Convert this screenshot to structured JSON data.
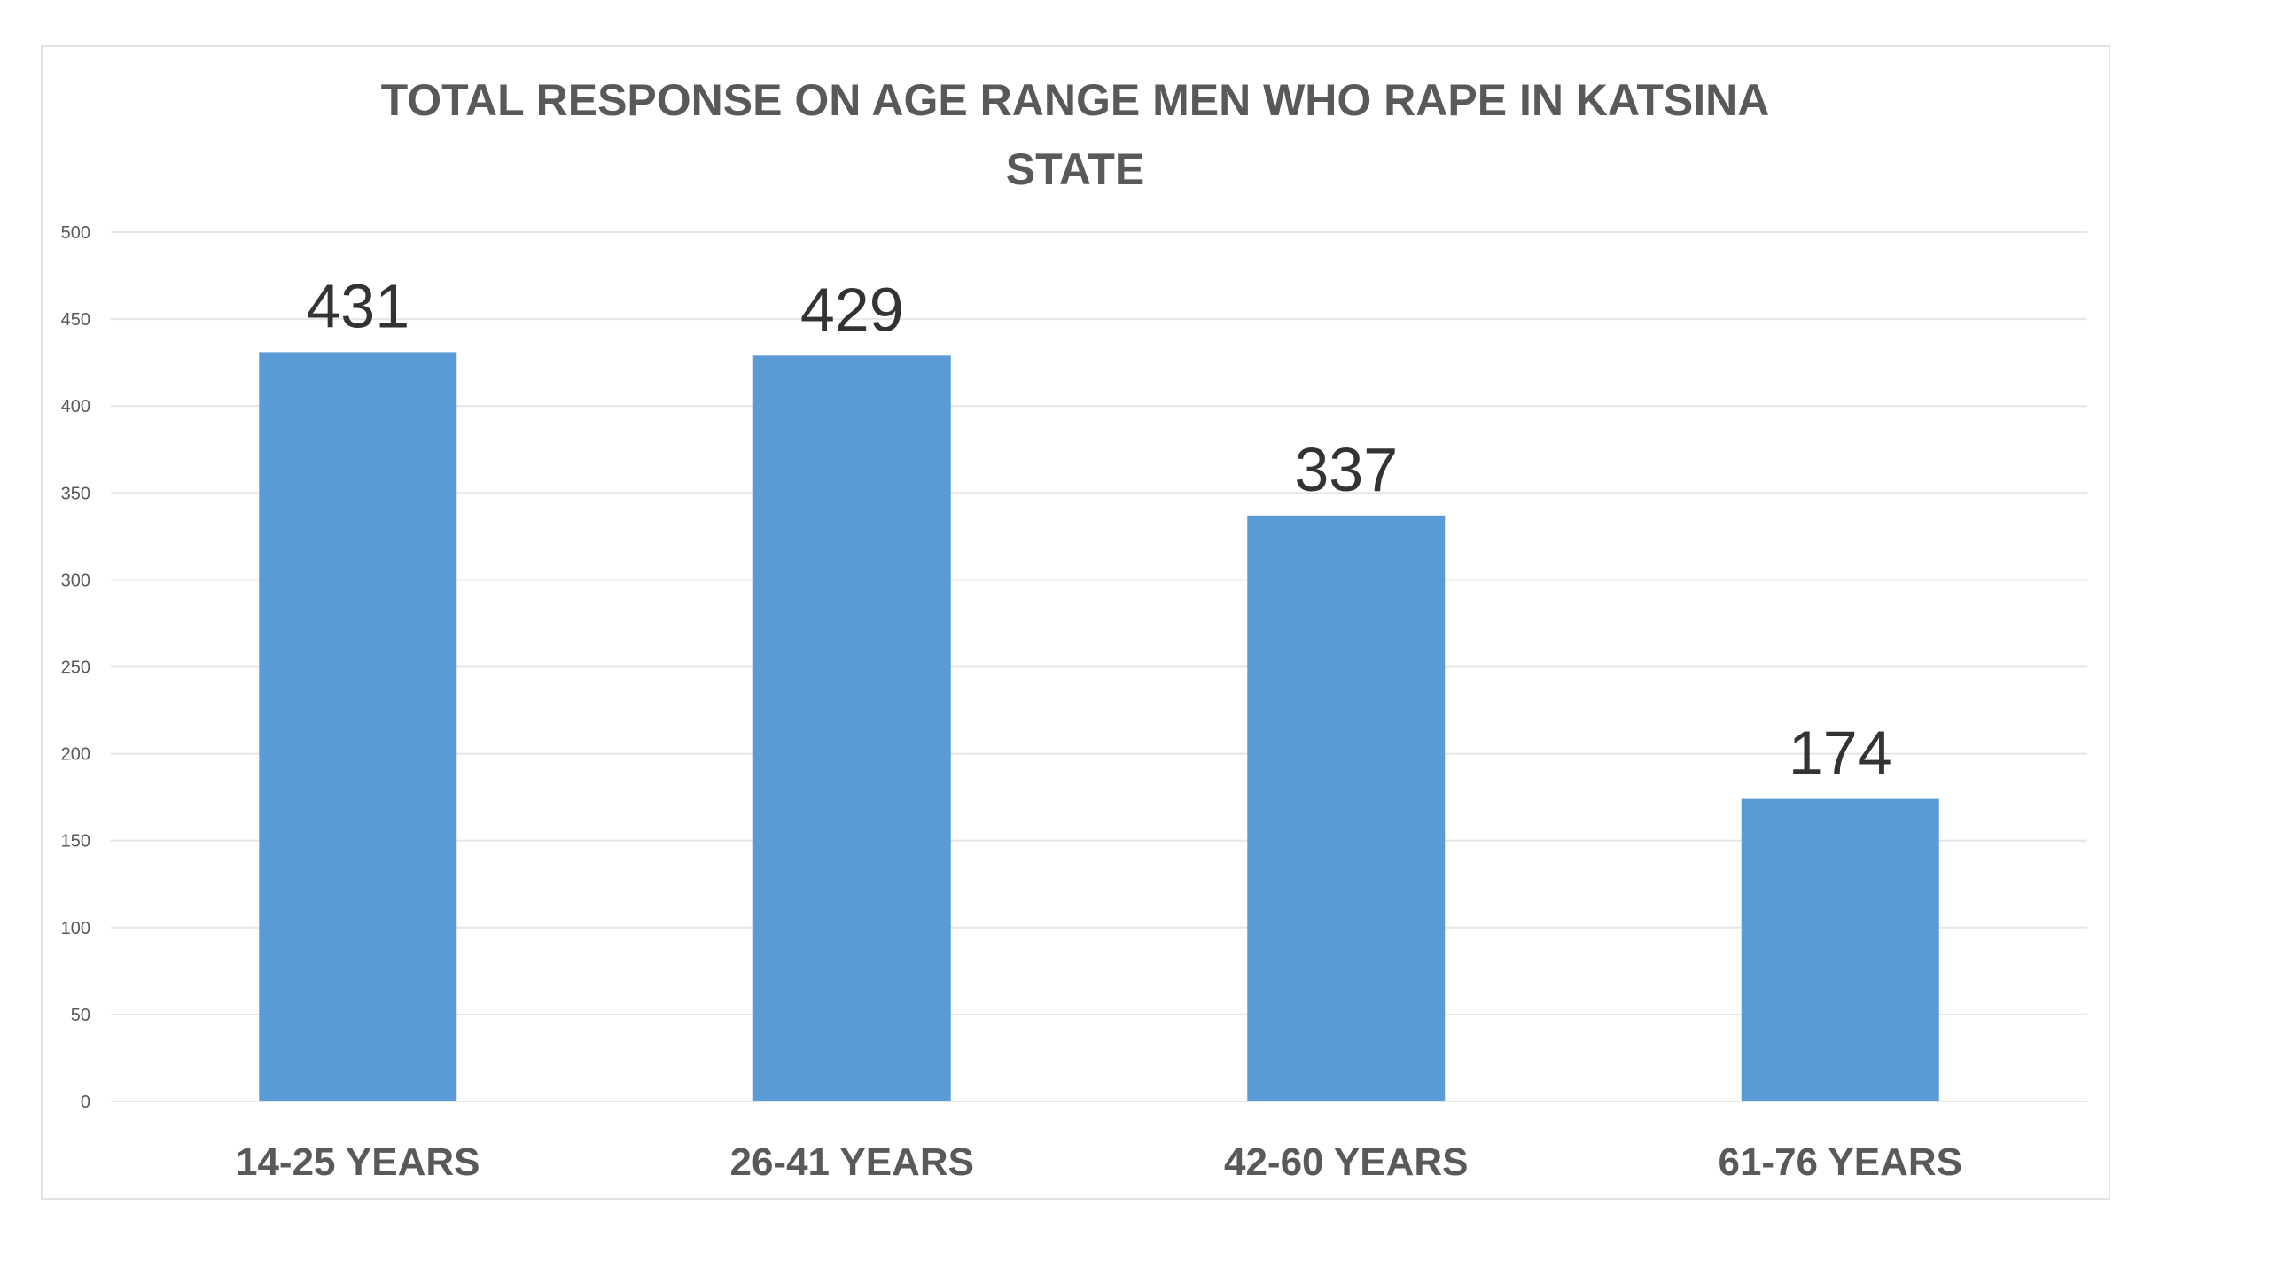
{
  "chart_data": {
    "type": "bar",
    "title_lines": [
      "TOTAL RESPONSE ON AGE RANGE MEN WHO RAPE IN KATSINA",
      "STATE"
    ],
    "categories": [
      "14-25 YEARS",
      "26-41 YEARS",
      "42-60 YEARS",
      "61-76 YEARS"
    ],
    "values": [
      431,
      429,
      337,
      174
    ],
    "data_labels": [
      "431",
      "429",
      "337",
      "174"
    ],
    "ylim": [
      0,
      500
    ],
    "yticks": [
      0,
      50,
      100,
      150,
      200,
      250,
      300,
      350,
      400,
      450,
      500
    ],
    "grid": true,
    "legend": "none",
    "bar_color": "#5b9bd5"
  }
}
